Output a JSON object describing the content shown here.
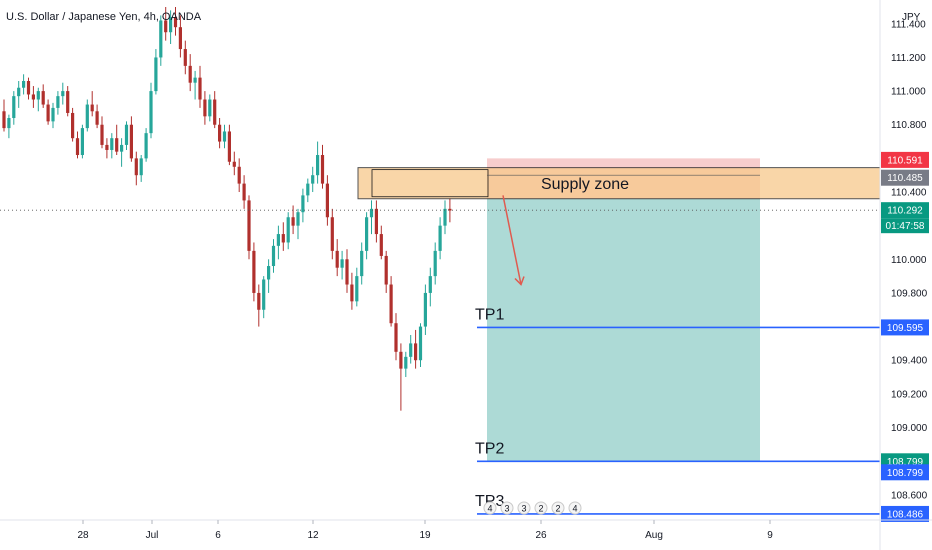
{
  "header": {
    "symbol_title": "U.S. Dollar / Japanese Yen, 4h, OANDA",
    "currency": "JPY"
  },
  "chart_data": {
    "type": "candlestick",
    "title": "U.S. Dollar / Japanese Yen, 4h, OANDA",
    "y_unit": "JPY",
    "ylim": [
      108.45,
      111.5
    ],
    "y_ticks": [
      "111.400",
      "111.200",
      "111.000",
      "110.800",
      "110.600",
      "110.400",
      "110.000",
      "109.800",
      "109.600",
      "109.400",
      "109.200",
      "109.000",
      "108.600"
    ],
    "x_ticks": [
      "28",
      "Jul",
      "6",
      "12",
      "19",
      "26",
      "Aug",
      "9"
    ],
    "price_tags": [
      {
        "label": "110.591",
        "value": 110.591,
        "color": "#f23645"
      },
      {
        "label": "110.485",
        "value": 110.485,
        "color": "#787b86"
      },
      {
        "label": "110.292",
        "value": 110.292,
        "color": "#089981"
      },
      {
        "label": "109.595",
        "value": 109.595,
        "color": "#2962ff"
      },
      {
        "label": "108.799",
        "value": 108.799,
        "color": "#089981"
      },
      {
        "label": "108.799",
        "value": 108.799,
        "color": "#2962ff"
      },
      {
        "label": "108.486",
        "value": 108.486,
        "color": "#2962ff"
      }
    ],
    "countdown": "01:47:58",
    "last_price": 110.292,
    "supply_zone": {
      "label": "Supply zone",
      "low": 110.36,
      "high": 110.545,
      "color": "#f7c98b"
    },
    "short_position": {
      "entry": 110.36,
      "stop": 110.6,
      "target": 108.799,
      "profit_color": "#9fd3cf",
      "loss_color": "#f6c4c4"
    },
    "targets": [
      {
        "label": "TP1",
        "value": 109.595
      },
      {
        "label": "TP2",
        "value": 108.799
      },
      {
        "label": "TP3",
        "value": 108.486
      }
    ],
    "event_markers": [
      "4",
      "3",
      "3",
      "2",
      "2",
      "4"
    ],
    "colors": {
      "up": "#26a69a",
      "down": "#b0302d",
      "line": "#2962ff",
      "arrow": "#e05a4f"
    },
    "candles": [
      [
        110.88,
        110.95,
        110.76,
        110.78
      ],
      [
        110.78,
        110.86,
        110.72,
        110.84
      ],
      [
        110.84,
        111.0,
        110.8,
        110.97
      ],
      [
        110.97,
        111.06,
        110.9,
        111.02
      ],
      [
        111.02,
        111.1,
        110.98,
        111.06
      ],
      [
        111.06,
        111.08,
        110.95,
        110.98
      ],
      [
        110.98,
        111.03,
        110.9,
        110.95
      ],
      [
        110.95,
        111.02,
        110.88,
        111.0
      ],
      [
        111.0,
        111.04,
        110.9,
        110.92
      ],
      [
        110.92,
        110.95,
        110.8,
        110.82
      ],
      [
        110.82,
        110.93,
        110.78,
        110.9
      ],
      [
        110.9,
        111.0,
        110.86,
        110.97
      ],
      [
        110.97,
        111.05,
        110.92,
        111.0
      ],
      [
        111.0,
        111.03,
        110.85,
        110.87
      ],
      [
        110.87,
        110.9,
        110.7,
        110.72
      ],
      [
        110.72,
        110.76,
        110.6,
        110.62
      ],
      [
        110.62,
        110.8,
        110.6,
        110.78
      ],
      [
        110.78,
        110.95,
        110.76,
        110.92
      ],
      [
        110.92,
        111.0,
        110.85,
        110.88
      ],
      [
        110.88,
        110.92,
        110.78,
        110.8
      ],
      [
        110.8,
        110.85,
        110.66,
        110.68
      ],
      [
        110.68,
        110.72,
        110.6,
        110.65
      ],
      [
        110.65,
        110.75,
        110.6,
        110.72
      ],
      [
        110.72,
        110.8,
        110.62,
        110.64
      ],
      [
        110.64,
        110.72,
        110.55,
        110.68
      ],
      [
        110.68,
        110.82,
        110.65,
        110.8
      ],
      [
        110.8,
        110.85,
        110.58,
        110.6
      ],
      [
        110.6,
        110.64,
        110.44,
        110.5
      ],
      [
        110.5,
        110.62,
        110.46,
        110.6
      ],
      [
        110.6,
        110.78,
        110.58,
        110.75
      ],
      [
        110.75,
        111.05,
        110.72,
        111.0
      ],
      [
        111.0,
        111.25,
        110.98,
        111.2
      ],
      [
        111.2,
        111.45,
        111.15,
        111.42
      ],
      [
        111.42,
        111.5,
        111.3,
        111.35
      ],
      [
        111.35,
        111.48,
        111.28,
        111.44
      ],
      [
        111.44,
        111.5,
        111.33,
        111.38
      ],
      [
        111.38,
        111.45,
        111.2,
        111.25
      ],
      [
        111.25,
        111.3,
        111.1,
        111.15
      ],
      [
        111.15,
        111.22,
        111.0,
        111.05
      ],
      [
        111.05,
        111.12,
        110.95,
        111.08
      ],
      [
        111.08,
        111.15,
        110.9,
        110.95
      ],
      [
        110.95,
        111.0,
        110.8,
        110.85
      ],
      [
        110.85,
        110.98,
        110.82,
        110.95
      ],
      [
        110.95,
        111.0,
        110.78,
        110.8
      ],
      [
        110.8,
        110.84,
        110.66,
        110.7
      ],
      [
        110.7,
        110.8,
        110.66,
        110.76
      ],
      [
        110.76,
        110.8,
        110.56,
        110.58
      ],
      [
        110.58,
        110.64,
        110.5,
        110.55
      ],
      [
        110.55,
        110.6,
        110.4,
        110.45
      ],
      [
        110.45,
        110.5,
        110.3,
        110.35
      ],
      [
        110.35,
        110.38,
        110.0,
        110.05
      ],
      [
        110.05,
        110.1,
        109.75,
        109.8
      ],
      [
        109.8,
        109.85,
        109.6,
        109.7
      ],
      [
        109.7,
        109.9,
        109.65,
        109.88
      ],
      [
        109.88,
        110.0,
        109.8,
        109.96
      ],
      [
        109.96,
        110.12,
        109.92,
        110.08
      ],
      [
        110.08,
        110.2,
        110.0,
        110.15
      ],
      [
        110.15,
        110.22,
        110.05,
        110.1
      ],
      [
        110.1,
        110.28,
        110.06,
        110.25
      ],
      [
        110.25,
        110.32,
        110.15,
        110.2
      ],
      [
        110.2,
        110.3,
        110.12,
        110.28
      ],
      [
        110.28,
        110.42,
        110.22,
        110.38
      ],
      [
        110.38,
        110.48,
        110.34,
        110.45
      ],
      [
        110.45,
        110.55,
        110.4,
        110.5
      ],
      [
        110.5,
        110.7,
        110.45,
        110.62
      ],
      [
        110.62,
        110.68,
        110.42,
        110.45
      ],
      [
        110.45,
        110.5,
        110.2,
        110.25
      ],
      [
        110.25,
        110.3,
        110.0,
        110.05
      ],
      [
        110.05,
        110.12,
        109.9,
        109.95
      ],
      [
        109.95,
        110.05,
        109.88,
        110.0
      ],
      [
        110.0,
        110.06,
        109.8,
        109.85
      ],
      [
        109.85,
        109.92,
        109.7,
        109.75
      ],
      [
        109.75,
        109.95,
        109.72,
        109.9
      ],
      [
        109.9,
        110.1,
        109.85,
        110.05
      ],
      [
        110.05,
        110.28,
        110.0,
        110.25
      ],
      [
        110.25,
        110.35,
        110.15,
        110.3
      ],
      [
        110.3,
        110.35,
        110.1,
        110.15
      ],
      [
        110.15,
        110.2,
        110.0,
        110.02
      ],
      [
        110.02,
        110.05,
        109.8,
        109.85
      ],
      [
        109.85,
        109.9,
        109.6,
        109.62
      ],
      [
        109.62,
        109.68,
        109.4,
        109.45
      ],
      [
        109.45,
        109.5,
        109.1,
        109.35
      ],
      [
        109.35,
        109.45,
        109.3,
        109.42
      ],
      [
        109.42,
        109.55,
        109.38,
        109.5
      ],
      [
        109.5,
        109.58,
        109.35,
        109.4
      ],
      [
        109.4,
        109.62,
        109.36,
        109.6
      ],
      [
        109.6,
        109.85,
        109.55,
        109.8
      ],
      [
        109.8,
        109.95,
        109.72,
        109.9
      ],
      [
        109.9,
        110.1,
        109.85,
        110.05
      ],
      [
        110.05,
        110.25,
        110.0,
        110.2
      ],
      [
        110.2,
        110.35,
        110.15,
        110.3
      ],
      [
        110.3,
        110.36,
        110.22,
        110.29
      ]
    ]
  }
}
